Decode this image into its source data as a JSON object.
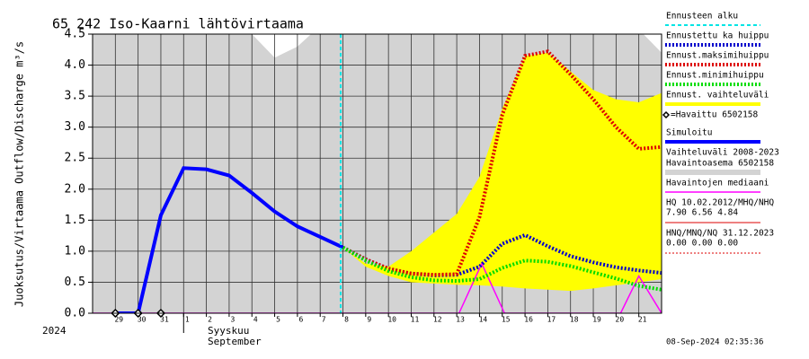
{
  "chart_data": {
    "type": "line",
    "title": "65 242 Iso-Kaarni lähtövirtaama",
    "y_label": "Juoksutus/Virtaama Outflow/Discharge m³/s",
    "year_label": "2024",
    "month_labels": [
      "Syyskuu",
      "September"
    ],
    "timestamp": "08-Sep-2024 02:35:36",
    "xlim": [
      -1,
      24
    ],
    "xticks": [
      {
        "value": 0,
        "label": "29"
      },
      {
        "value": 1,
        "label": "30"
      },
      {
        "value": 2,
        "label": "31"
      },
      {
        "value": 3,
        "label": "1"
      },
      {
        "value": 4,
        "label": "2"
      },
      {
        "value": 5,
        "label": "3"
      },
      {
        "value": 6,
        "label": "4"
      },
      {
        "value": 7,
        "label": "5"
      },
      {
        "value": 8,
        "label": "6"
      },
      {
        "value": 9,
        "label": "7"
      },
      {
        "value": 10,
        "label": "8"
      },
      {
        "value": 11,
        "label": "9"
      },
      {
        "value": 12,
        "label": "10"
      },
      {
        "value": 13,
        "label": "11"
      },
      {
        "value": 14,
        "label": "12"
      },
      {
        "value": 15,
        "label": "13"
      },
      {
        "value": 16,
        "label": "14"
      },
      {
        "value": 17,
        "label": "15"
      },
      {
        "value": 18,
        "label": "16"
      },
      {
        "value": 19,
        "label": "17"
      },
      {
        "value": 20,
        "label": "18"
      },
      {
        "value": 21,
        "label": "19"
      },
      {
        "value": 22,
        "label": "20"
      },
      {
        "value": 23,
        "label": "21"
      }
    ],
    "month_start": 3,
    "ylim": [
      0,
      4.5
    ],
    "yticks": [
      {
        "value": 0,
        "label": "0.0"
      },
      0.5,
      {
        "value": 1,
        "label": "1.0"
      },
      1.5,
      {
        "value": 2,
        "label": "2.0"
      },
      2.5,
      {
        "value": 3,
        "label": "3.0"
      },
      3.5,
      {
        "value": 4,
        "label": "4.0"
      },
      4.5
    ],
    "grid": true,
    "vlines": [
      {
        "name": "Ennusteen alku",
        "color": "#00e5e5",
        "x": 9.9
      }
    ],
    "series": [
      {
        "name": [
          "Vaihteluväli 2008-2023",
          "Havaintoasema 6502158"
        ],
        "style": "area",
        "color": "#d3d3d3",
        "x": [
          -1,
          6,
          7,
          8,
          8.6,
          23.2,
          24
        ],
        "values": [
          4.5,
          4.5,
          4.12,
          4.3,
          4.5,
          4.5,
          4.2
        ]
      },
      {
        "name": [
          "Ennust. vaihteluväli"
        ],
        "style": "band",
        "color": "#ffff00",
        "x": [
          10,
          11,
          12,
          13,
          14,
          15,
          16,
          17,
          18,
          19,
          20,
          21,
          22,
          23,
          24
        ],
        "values": [
          1.06,
          0.8,
          0.75,
          1.0,
          1.3,
          1.6,
          2.2,
          3.3,
          4.15,
          4.2,
          3.9,
          3.6,
          3.45,
          3.4,
          3.55
        ],
        "lower": [
          1.06,
          0.75,
          0.6,
          0.5,
          0.48,
          0.46,
          0.45,
          0.43,
          0.4,
          0.38,
          0.36,
          0.4,
          0.45,
          0.5,
          0.55
        ]
      },
      {
        "name": [
          "Havaintojen mediaani"
        ],
        "style": "line",
        "color": "#ff00ff",
        "width": 1.5,
        "x": [
          -1,
          15.1,
          16.1,
          17.1,
          22.2,
          23,
          24
        ],
        "values": [
          0,
          0,
          0.8,
          0,
          0,
          0.6,
          0
        ]
      },
      {
        "name": [
          "Simuloitu"
        ],
        "style": "line",
        "color": "#0000ff",
        "width": 4,
        "x": [
          0,
          1,
          2,
          3,
          4,
          5,
          6,
          7,
          8,
          9,
          10
        ],
        "values": [
          0,
          0,
          1.58,
          2.34,
          2.32,
          2.22,
          1.94,
          1.64,
          1.4,
          1.23,
          1.06
        ]
      },
      {
        "name": [
          "Ennustettu ka huippu"
        ],
        "style": "dotted",
        "color": "#0000cc",
        "width": 4,
        "x": [
          10,
          11,
          12,
          13,
          14,
          15,
          16,
          17,
          18,
          19,
          20,
          21,
          22,
          23,
          24
        ],
        "values": [
          1.06,
          0.87,
          0.71,
          0.64,
          0.61,
          0.62,
          0.75,
          1.12,
          1.26,
          1.08,
          0.92,
          0.82,
          0.74,
          0.69,
          0.65
        ]
      },
      {
        "name": [
          "Ennust.maksimihuippu"
        ],
        "style": "dotted",
        "color": "#dd0000",
        "width": 4,
        "x": [
          10,
          11,
          12,
          13,
          14,
          15,
          16,
          17,
          18,
          19,
          20,
          21,
          22,
          23,
          24
        ],
        "values": [
          1.06,
          0.87,
          0.72,
          0.64,
          0.62,
          0.63,
          1.55,
          3.2,
          4.15,
          4.22,
          3.85,
          3.45,
          3.0,
          2.65,
          2.68
        ]
      },
      {
        "name": [
          "Ennust.minimihuippu"
        ],
        "style": "dotted",
        "color": "#00dd00",
        "width": 4,
        "x": [
          10,
          11,
          12,
          13,
          14,
          15,
          16,
          17,
          18,
          19,
          20,
          21,
          22,
          23,
          24
        ],
        "values": [
          1.06,
          0.85,
          0.68,
          0.58,
          0.53,
          0.52,
          0.55,
          0.73,
          0.85,
          0.83,
          0.76,
          0.66,
          0.56,
          0.44,
          0.38
        ]
      },
      {
        "name": [
          "=Havaittu 6502158"
        ],
        "style": "markers",
        "color": "#000000",
        "x": [
          0,
          1,
          2
        ],
        "values": [
          0,
          0,
          0
        ]
      }
    ],
    "notes": [
      {
        "lines": [
          "HQ 10.02.2012/MHQ/NHQ",
          "7.90 6.56 4.84"
        ],
        "color": "#dd0000",
        "dash": false
      },
      {
        "lines": [
          "HNQ/MNQ/NQ 31.12.2023",
          "0.00 0.00 0.00"
        ],
        "color": "#dd0000",
        "dash": true
      }
    ]
  }
}
